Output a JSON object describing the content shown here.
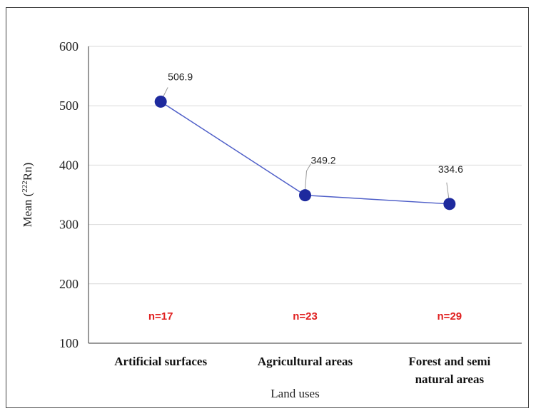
{
  "chart_data": {
    "type": "line",
    "categories": [
      "Artificial surfaces",
      "Agricultural areas",
      "Forest and semi natural areas"
    ],
    "category_lines": [
      [
        "Artificial surfaces"
      ],
      [
        "Agricultural areas"
      ],
      [
        "Forest and semi",
        "natural areas"
      ]
    ],
    "values": [
      506.9,
      349.2,
      334.6
    ],
    "data_labels": [
      "506.9",
      "349.2",
      "334.6"
    ],
    "annotations": [
      "n=17",
      "n=23",
      "n=29"
    ],
    "ylabel_main": "Mean (",
    "ylabel_sup": "222",
    "ylabel_end": "Rn)",
    "xlabel": "Land uses",
    "ylim": [
      100,
      600
    ],
    "yticks": [
      100,
      200,
      300,
      400,
      500,
      600
    ],
    "grid": true,
    "legend": "none",
    "colors": {
      "line": "#4f5fc8",
      "marker": "#1e2a9e",
      "annotation": "#e02020"
    }
  }
}
